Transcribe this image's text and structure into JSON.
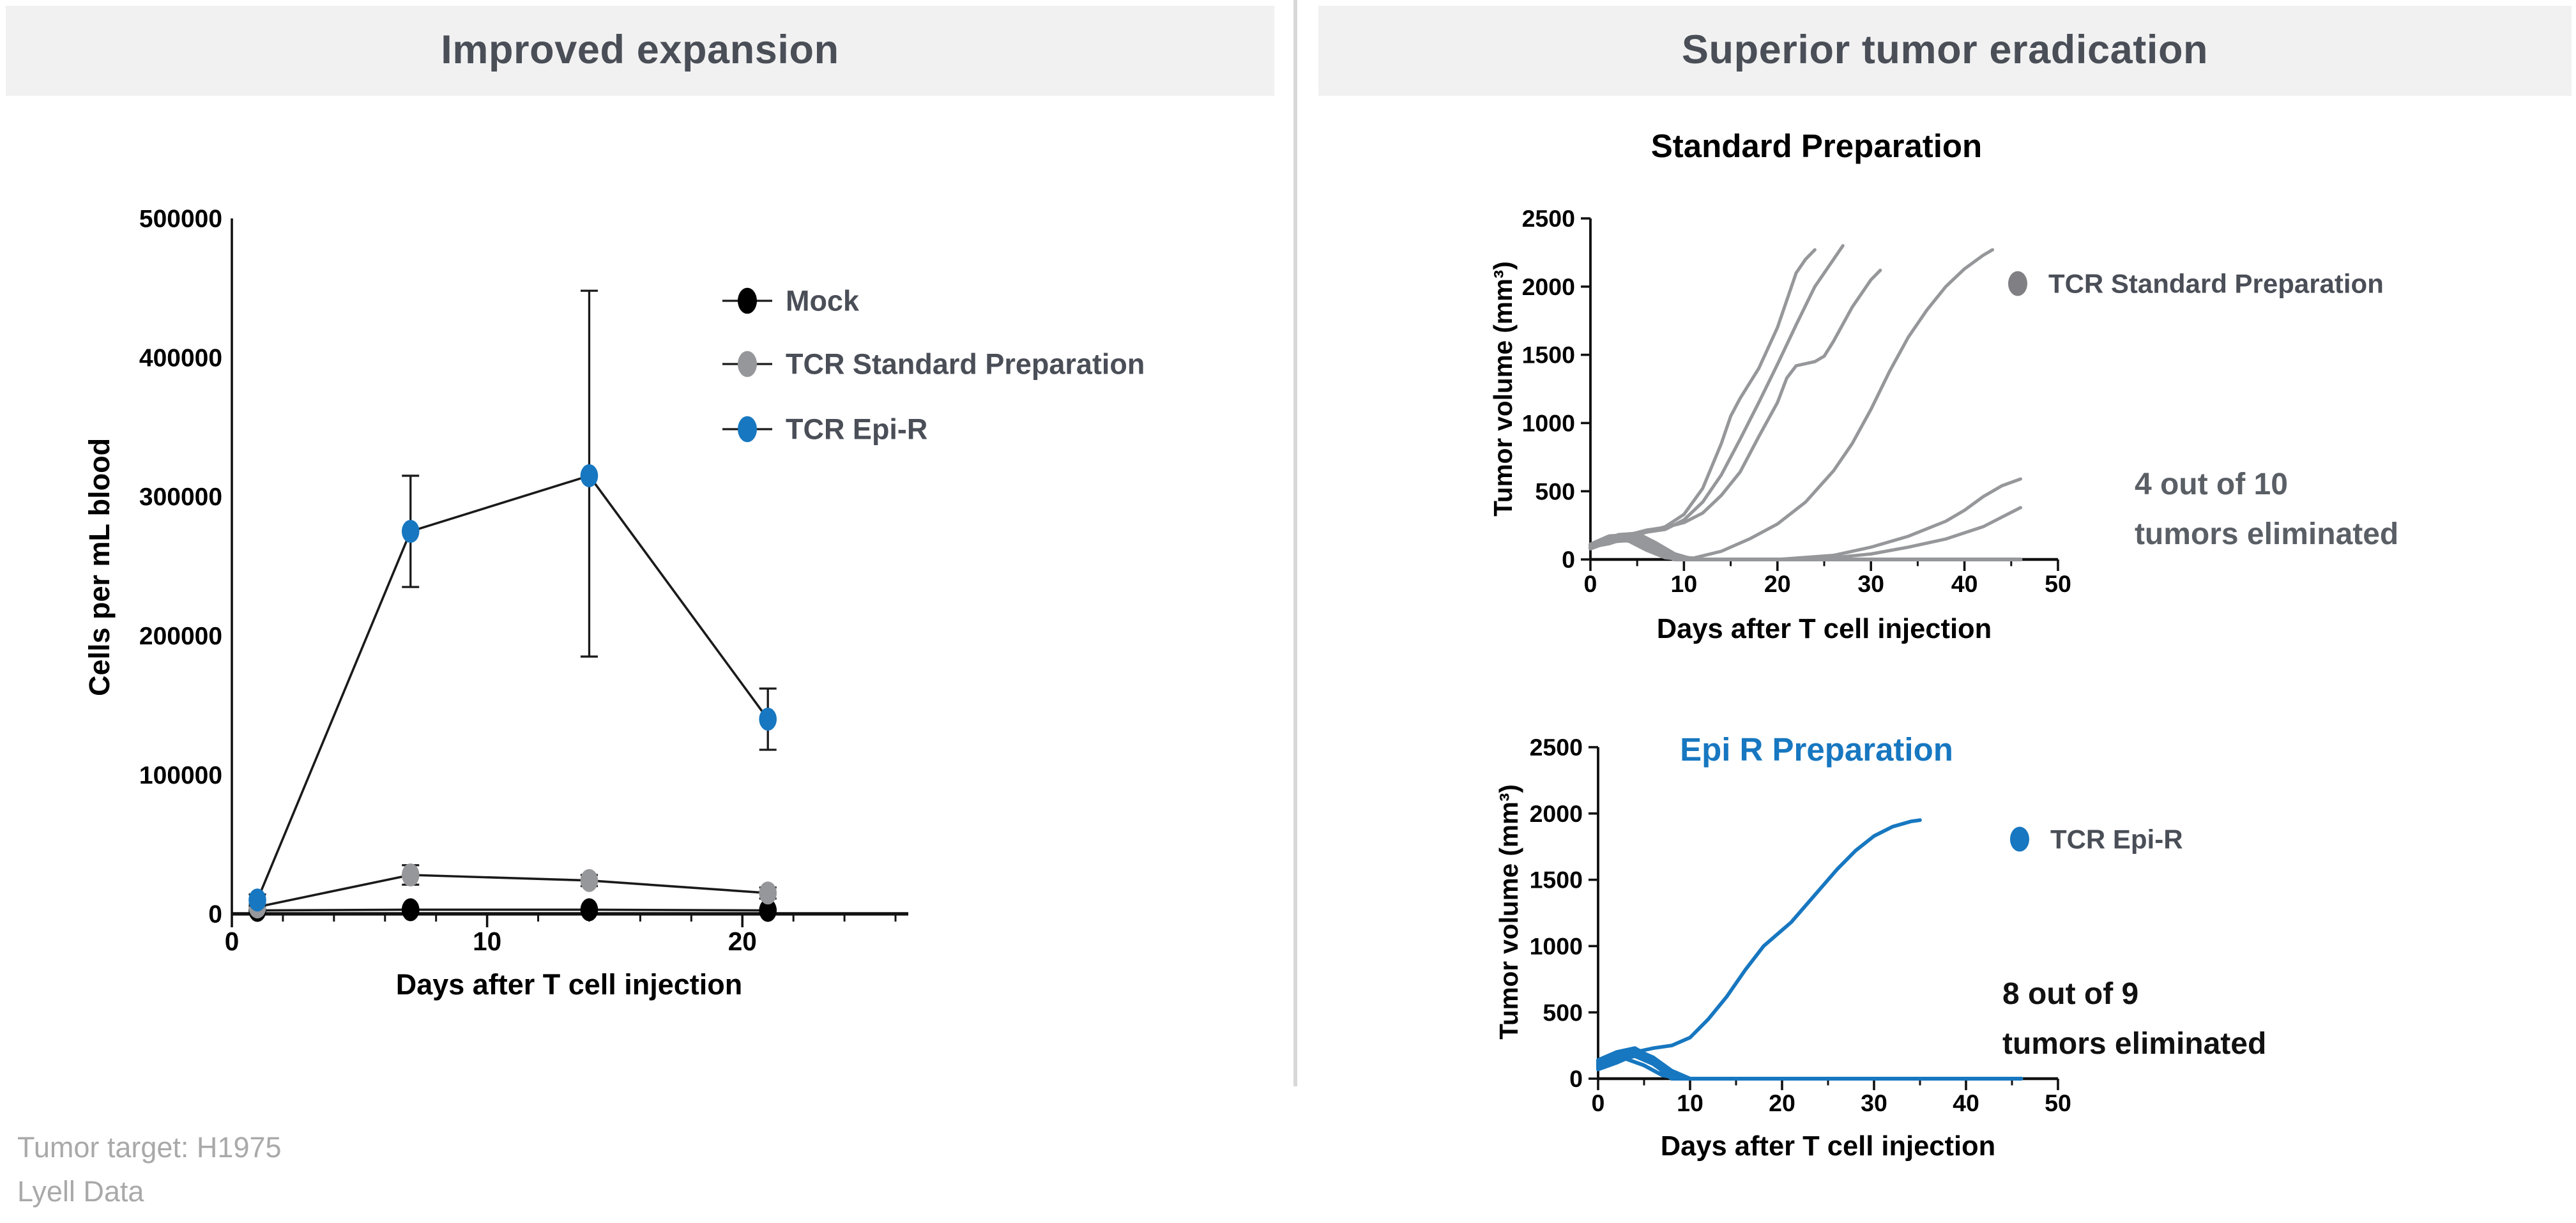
{
  "panels": {
    "left_title": "Improved expansion",
    "right_title": "Superior tumor eradication"
  },
  "footnote": {
    "line1": "Tumor target: H1975",
    "line2": "Lyell Data"
  },
  "colors": {
    "blue": "#1777C0",
    "gray": "#96979A",
    "black": "#000000",
    "legend_text": "#4A4E57",
    "banner_bg": "#F1F1F1",
    "banner_text": "#4A4E57",
    "divider": "#D8D8D8",
    "annotation_gray": "#5A5F66",
    "annotation_black": "#111111",
    "footnote_gray": "#A9A9A9",
    "axis": "#111111"
  },
  "chart_data": [
    {
      "id": "expansion",
      "type": "line",
      "title": "",
      "xlabel": "Days after T cell injection",
      "ylabel": "Cells per mL blood",
      "xlim": [
        0,
        26.5
      ],
      "ylim": [
        0,
        500000
      ],
      "xticks": [
        0,
        10,
        20
      ],
      "xminor_step": 2,
      "yticks": [
        0,
        100000,
        200000,
        300000,
        400000,
        500000
      ],
      "grid": false,
      "legend_position": "inside-right",
      "legend": [
        {
          "label": "Mock",
          "color": "#000000"
        },
        {
          "label": "TCR Standard Preparation",
          "color": "#96979A"
        },
        {
          "label": "TCR Epi-R",
          "color": "#1777C0"
        }
      ],
      "series": [
        {
          "name": "Mock",
          "color": "#000000",
          "line_color": "#1A1A1A",
          "marker": true,
          "x": [
            1,
            7,
            14,
            21
          ],
          "y": [
            2500,
            3000,
            3000,
            2500
          ],
          "err_low": [
            1500,
            2000,
            2000,
            1500
          ],
          "err_high": [
            3500,
            4000,
            4000,
            3500
          ]
        },
        {
          "name": "TCR Standard Preparation",
          "color": "#96979A",
          "line_color": "#1A1A1A",
          "marker": true,
          "x": [
            1,
            7,
            14,
            21
          ],
          "y": [
            5000,
            28000,
            24000,
            15000
          ],
          "err_low": [
            3000,
            21000,
            20000,
            11000
          ],
          "err_high": [
            7000,
            35000,
            28000,
            19000
          ]
        },
        {
          "name": "TCR Epi-R",
          "color": "#1777C0",
          "line_color": "#1A1A1A",
          "marker": true,
          "x": [
            1,
            7,
            14,
            21
          ],
          "y": [
            10000,
            275000,
            315000,
            140000
          ],
          "err_low": [
            6000,
            235000,
            185000,
            118000
          ],
          "err_high": [
            14000,
            315000,
            448000,
            162000
          ]
        }
      ]
    },
    {
      "id": "standard",
      "type": "line",
      "title": "Standard Preparation",
      "title_color": "#000000",
      "xlabel": "Days after T cell injection",
      "ylabel": "Tumor volume (mm³)",
      "xlim": [
        0,
        50
      ],
      "ylim": [
        0,
        2500
      ],
      "xticks": [
        0,
        10,
        20,
        30,
        40,
        50
      ],
      "xminor_step": 5,
      "yticks": [
        0,
        500,
        1000,
        1500,
        2000,
        2500
      ],
      "grid": false,
      "series_color": "#96979A",
      "legend_position": "right",
      "legend": [
        {
          "label": "TCR Standard Preparation",
          "color": "#808084"
        }
      ],
      "annotation": {
        "lines": [
          "4 out of 10",
          "tumors eliminated"
        ],
        "color": "#5A5F66"
      },
      "series": [
        {
          "name": "tumor-1",
          "x": [
            0,
            2,
            4,
            6,
            8,
            10,
            12,
            14,
            15,
            16,
            18,
            20,
            21,
            22,
            23,
            24
          ],
          "y": [
            100,
            120,
            170,
            200,
            240,
            330,
            520,
            850,
            1050,
            1180,
            1400,
            1700,
            1900,
            2100,
            2200,
            2270
          ]
        },
        {
          "name": "tumor-2",
          "x": [
            0,
            2,
            4,
            6,
            8,
            10,
            12,
            14,
            16,
            18,
            20,
            22,
            24,
            26,
            27
          ],
          "y": [
            90,
            115,
            160,
            200,
            220,
            290,
            420,
            620,
            880,
            1150,
            1430,
            1720,
            2000,
            2200,
            2300
          ]
        },
        {
          "name": "tumor-3",
          "x": [
            0,
            2,
            4,
            6,
            8,
            10,
            12,
            14,
            16,
            18,
            20,
            21,
            22,
            24,
            25,
            26,
            28,
            30,
            31
          ],
          "y": [
            110,
            130,
            180,
            215,
            235,
            270,
            340,
            470,
            640,
            900,
            1150,
            1330,
            1420,
            1450,
            1490,
            1600,
            1850,
            2050,
            2120
          ]
        },
        {
          "name": "tumor-4",
          "x": [
            0,
            3,
            5,
            7,
            9,
            11,
            14,
            17,
            20,
            23,
            26,
            28,
            30,
            32,
            34,
            36,
            38,
            40,
            42,
            43
          ],
          "y": [
            80,
            150,
            170,
            90,
            20,
            10,
            60,
            150,
            260,
            420,
            650,
            850,
            1100,
            1380,
            1630,
            1830,
            2000,
            2130,
            2230,
            2270
          ]
        },
        {
          "name": "tumor-5",
          "x": [
            0,
            3,
            5,
            7,
            9,
            12,
            20,
            26,
            30,
            34,
            38,
            40,
            42,
            44,
            46
          ],
          "y": [
            95,
            160,
            150,
            60,
            10,
            0,
            0,
            30,
            90,
            170,
            280,
            360,
            460,
            540,
            590
          ]
        },
        {
          "name": "tumor-6",
          "x": [
            0,
            3,
            5,
            7,
            9,
            12,
            24,
            30,
            34,
            38,
            42,
            44,
            46
          ],
          "y": [
            85,
            140,
            130,
            50,
            5,
            0,
            0,
            40,
            90,
            150,
            240,
            310,
            380
          ]
        },
        {
          "name": "tumor-7",
          "width": 2,
          "x": [
            0,
            3,
            5,
            7,
            9,
            11,
            45
          ],
          "y": [
            100,
            180,
            190,
            120,
            40,
            0,
            0
          ]
        },
        {
          "name": "tumor-8",
          "width": 2,
          "x": [
            0,
            3,
            5,
            7,
            9,
            10,
            46
          ],
          "y": [
            90,
            150,
            160,
            90,
            20,
            0,
            0
          ]
        },
        {
          "name": "tumor-9",
          "width": 2,
          "x": [
            0,
            2,
            4,
            6,
            8,
            9,
            45
          ],
          "y": [
            110,
            170,
            180,
            100,
            30,
            0,
            0
          ]
        },
        {
          "name": "tumor-10",
          "width": 2,
          "x": [
            0,
            2,
            4,
            6,
            8,
            10,
            44
          ],
          "y": [
            80,
            130,
            140,
            70,
            15,
            0,
            0
          ]
        }
      ]
    },
    {
      "id": "epir",
      "type": "line",
      "title": "Epi R Preparation",
      "title_color": "#1777C0",
      "xlabel": "Days after T cell injection",
      "ylabel": "Tumor volume (mm³)",
      "xlim": [
        0,
        50
      ],
      "ylim": [
        0,
        2500
      ],
      "xticks": [
        0,
        10,
        20,
        30,
        40,
        50
      ],
      "xminor_step": 5,
      "yticks": [
        0,
        500,
        1000,
        1500,
        2000,
        2500
      ],
      "grid": false,
      "series_color": "#1777C0",
      "legend_position": "right",
      "legend": [
        {
          "label": "TCR Epi-R",
          "color": "#1777C0"
        }
      ],
      "annotation": {
        "lines": [
          "8 out of 9",
          "tumors eliminated"
        ],
        "color": "#111111"
      },
      "series": [
        {
          "name": "epi-tumor-1",
          "width": 1.9,
          "x": [
            0,
            2,
            4,
            6,
            8,
            10,
            12,
            14,
            16,
            18,
            20,
            21,
            22,
            24,
            26,
            28,
            30,
            32,
            34,
            35
          ],
          "y": [
            100,
            150,
            200,
            230,
            250,
            310,
            450,
            620,
            820,
            1000,
            1120,
            1180,
            1260,
            1420,
            1580,
            1720,
            1830,
            1900,
            1940,
            1950
          ]
        },
        {
          "name": "epi-tumor-2",
          "width": 2,
          "x": [
            0,
            2,
            4,
            6,
            8,
            10,
            46
          ],
          "y": [
            120,
            180,
            220,
            160,
            60,
            0,
            0
          ]
        },
        {
          "name": "epi-tumor-3",
          "width": 2,
          "x": [
            0,
            2,
            4,
            6,
            8,
            9,
            46
          ],
          "y": [
            100,
            160,
            200,
            130,
            40,
            0,
            0
          ]
        },
        {
          "name": "epi-tumor-4",
          "width": 2,
          "x": [
            0,
            2,
            4,
            6,
            7,
            9,
            45
          ],
          "y": [
            80,
            140,
            170,
            110,
            60,
            0,
            0
          ]
        },
        {
          "name": "epi-tumor-5",
          "width": 2,
          "x": [
            0,
            2,
            4,
            5,
            7,
            8,
            46
          ],
          "y": [
            140,
            200,
            230,
            190,
            80,
            0,
            0
          ]
        },
        {
          "name": "epi-tumor-6",
          "width": 2,
          "x": [
            0,
            2,
            4,
            6,
            8,
            10,
            45
          ],
          "y": [
            110,
            170,
            210,
            150,
            50,
            0,
            0
          ]
        },
        {
          "name": "epi-tumor-7",
          "width": 2,
          "x": [
            0,
            2,
            4,
            6,
            8,
            9,
            44
          ],
          "y": [
            90,
            150,
            180,
            120,
            30,
            0,
            0
          ]
        },
        {
          "name": "epi-tumor-8",
          "width": 2,
          "x": [
            0,
            2,
            4,
            6,
            7,
            8,
            46
          ],
          "y": [
            130,
            190,
            210,
            140,
            50,
            0,
            0
          ]
        },
        {
          "name": "epi-tumor-9",
          "width": 2,
          "x": [
            0,
            2,
            3,
            5,
            7,
            9,
            45
          ],
          "y": [
            70,
            120,
            150,
            100,
            25,
            0,
            0
          ]
        }
      ]
    }
  ]
}
